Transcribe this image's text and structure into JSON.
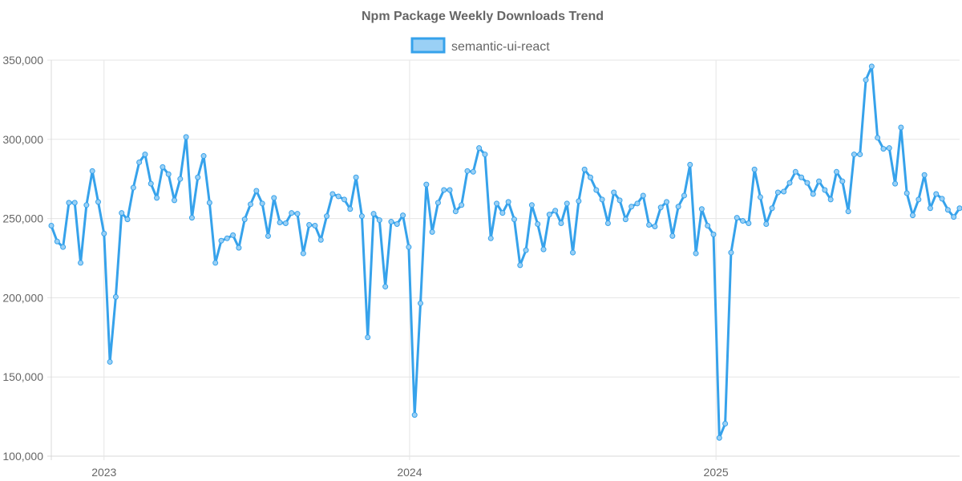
{
  "chart_data": {
    "type": "line",
    "title": "Npm Package Weekly Downloads Trend",
    "xlabel": "",
    "ylabel": "",
    "ylim": [
      100000,
      350000
    ],
    "y_ticks": [
      "100,000",
      "150,000",
      "200,000",
      "250,000",
      "300,000",
      "350,000"
    ],
    "x_ticks": [
      "2023",
      "2024",
      "2025"
    ],
    "x_start": "2022-10-30",
    "x_end": "2025-10-19",
    "grid": true,
    "legend_position": "top-center",
    "series": [
      {
        "name": "semantic-ui-react",
        "color": "#36a2eb",
        "fill_color": "#9ad0f5",
        "x": [
          "2022-10-30",
          "2022-11-06",
          "2022-11-13",
          "2022-11-20",
          "2022-11-27",
          "2022-12-04",
          "2022-12-11",
          "2022-12-18",
          "2022-12-25",
          "2023-01-01",
          "2023-01-08",
          "2023-01-15",
          "2023-01-22",
          "2023-01-29",
          "2023-02-05",
          "2023-02-12",
          "2023-02-19",
          "2023-02-26",
          "2023-03-05",
          "2023-03-12",
          "2023-03-19",
          "2023-03-26",
          "2023-04-02",
          "2023-04-09",
          "2023-04-16",
          "2023-04-23",
          "2023-04-30",
          "2023-05-07",
          "2023-05-14",
          "2023-05-21",
          "2023-05-28",
          "2023-06-04",
          "2023-06-11",
          "2023-06-18",
          "2023-06-25",
          "2023-07-02",
          "2023-07-09",
          "2023-07-16",
          "2023-07-23",
          "2023-07-30",
          "2023-08-06",
          "2023-08-13",
          "2023-08-20",
          "2023-08-27",
          "2023-09-03",
          "2023-09-10",
          "2023-09-17",
          "2023-09-24",
          "2023-10-01",
          "2023-10-08",
          "2023-10-15",
          "2023-10-22",
          "2023-10-29",
          "2023-11-05",
          "2023-11-12",
          "2023-11-19",
          "2023-11-26",
          "2023-12-03",
          "2023-12-10",
          "2023-12-17",
          "2023-12-24",
          "2023-12-31",
          "2024-01-07",
          "2024-01-14",
          "2024-01-21",
          "2024-01-28",
          "2024-02-04",
          "2024-02-11",
          "2024-02-18",
          "2024-02-25",
          "2024-03-03",
          "2024-03-10",
          "2024-03-17",
          "2024-03-24",
          "2024-03-31",
          "2024-04-07",
          "2024-04-14",
          "2024-04-21",
          "2024-04-28",
          "2024-05-05",
          "2024-05-12",
          "2024-05-19",
          "2024-05-26",
          "2024-06-02",
          "2024-06-09",
          "2024-06-16",
          "2024-06-23",
          "2024-06-30",
          "2024-07-07",
          "2024-07-14",
          "2024-07-21",
          "2024-07-28",
          "2024-08-04",
          "2024-08-11",
          "2024-08-18",
          "2024-08-25",
          "2024-09-01",
          "2024-09-08",
          "2024-09-15",
          "2024-09-22",
          "2024-09-29",
          "2024-10-06",
          "2024-10-13",
          "2024-10-20",
          "2024-10-27",
          "2024-11-03",
          "2024-11-10",
          "2024-11-17",
          "2024-11-24",
          "2024-12-01",
          "2024-12-08",
          "2024-12-15",
          "2024-12-22",
          "2024-12-29",
          "2025-01-05",
          "2025-01-12",
          "2025-01-19",
          "2025-01-26",
          "2025-02-02",
          "2025-02-09",
          "2025-02-16",
          "2025-02-23",
          "2025-03-02",
          "2025-03-09",
          "2025-03-16",
          "2025-03-23",
          "2025-03-30",
          "2025-04-06",
          "2025-04-13",
          "2025-04-20",
          "2025-04-27",
          "2025-05-04",
          "2025-05-11",
          "2025-05-18",
          "2025-05-25",
          "2025-06-01",
          "2025-06-08",
          "2025-06-15",
          "2025-06-22",
          "2025-06-29",
          "2025-07-06",
          "2025-07-13",
          "2025-07-20",
          "2025-07-27",
          "2025-08-03",
          "2025-08-10",
          "2025-08-17",
          "2025-08-24",
          "2025-08-31",
          "2025-09-07",
          "2025-09-14",
          "2025-09-21",
          "2025-09-28",
          "2025-10-05",
          "2025-10-12",
          "2025-10-19"
        ],
        "values": [
          245500,
          235500,
          232000,
          260000,
          260000,
          222000,
          258500,
          280000,
          260500,
          240500,
          159500,
          200500,
          253500,
          249500,
          269500,
          285500,
          290500,
          272000,
          263000,
          282500,
          278000,
          261500,
          275000,
          301500,
          250500,
          276000,
          289500,
          260000,
          222000,
          236000,
          237500,
          239500,
          231500,
          249500,
          259000,
          267500,
          259500,
          239000,
          263000,
          247500,
          247000,
          253500,
          253000,
          228000,
          246000,
          245500,
          236500,
          251500,
          265500,
          264000,
          262000,
          256000,
          276000,
          251500,
          175000,
          253000,
          249000,
          207000,
          248000,
          246500,
          252000,
          232000,
          126000,
          196500,
          271500,
          241500,
          260000,
          268000,
          268000,
          254500,
          258500,
          280000,
          279500,
          294500,
          290500,
          237500,
          259500,
          253500,
          260500,
          249500,
          220500,
          230000,
          258500,
          246500,
          230500,
          252500,
          255000,
          247000,
          259500,
          228500,
          261000,
          281000,
          276000,
          268000,
          262000,
          247000,
          266500,
          261500,
          249500,
          257500,
          259500,
          264500,
          246000,
          245000,
          257000,
          260500,
          239000,
          257500,
          264500,
          284000,
          228000,
          256000,
          245500,
          240000,
          111500,
          120500,
          228500,
          250500,
          248500,
          247000,
          281000,
          263500,
          246500,
          256500,
          266500,
          267000,
          272500,
          279500,
          276000,
          272500,
          265500,
          273500,
          268000,
          262000,
          279500,
          273500,
          254500,
          290500,
          290500,
          337500,
          346000,
          301000,
          294000,
          294500,
          272000,
          307500,
          266000,
          252000,
          262000,
          277500,
          256500,
          265500,
          262500,
          255500,
          251000,
          256500
        ]
      }
    ]
  }
}
